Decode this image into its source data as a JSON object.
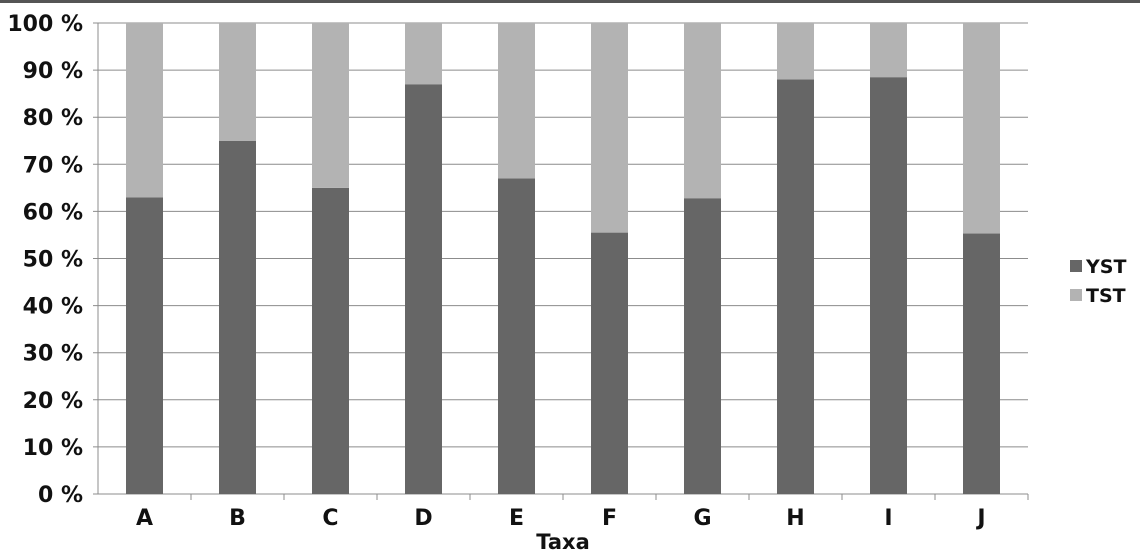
{
  "chart_data": {
    "type": "bar",
    "stacked": true,
    "percent": true,
    "categories": [
      "A",
      "B",
      "C",
      "D",
      "E",
      "F",
      "G",
      "H",
      "I",
      "J"
    ],
    "series": [
      {
        "name": "YST",
        "values": [
          63,
          75,
          65,
          87,
          67,
          55.5,
          62.8,
          88,
          88.5,
          55.3
        ]
      },
      {
        "name": "TST",
        "values": [
          37,
          25,
          35,
          13,
          33,
          44.5,
          37.2,
          12,
          11.5,
          44.7
        ]
      }
    ],
    "xlabel": "Taxa",
    "ylabel": "",
    "ylim": [
      0,
      100
    ],
    "yticks": [
      "0 %",
      "10 %",
      "20 %",
      "30 %",
      "40 %",
      "50 %",
      "60 %",
      "70 %",
      "80 %",
      "90 %",
      "100 %"
    ],
    "grid": true,
    "legend": "right",
    "colors": {
      "YST": "#666666",
      "TST": "#b3b3b3",
      "grid": "#8c8c8c",
      "axis": "#8c8c8c"
    }
  }
}
